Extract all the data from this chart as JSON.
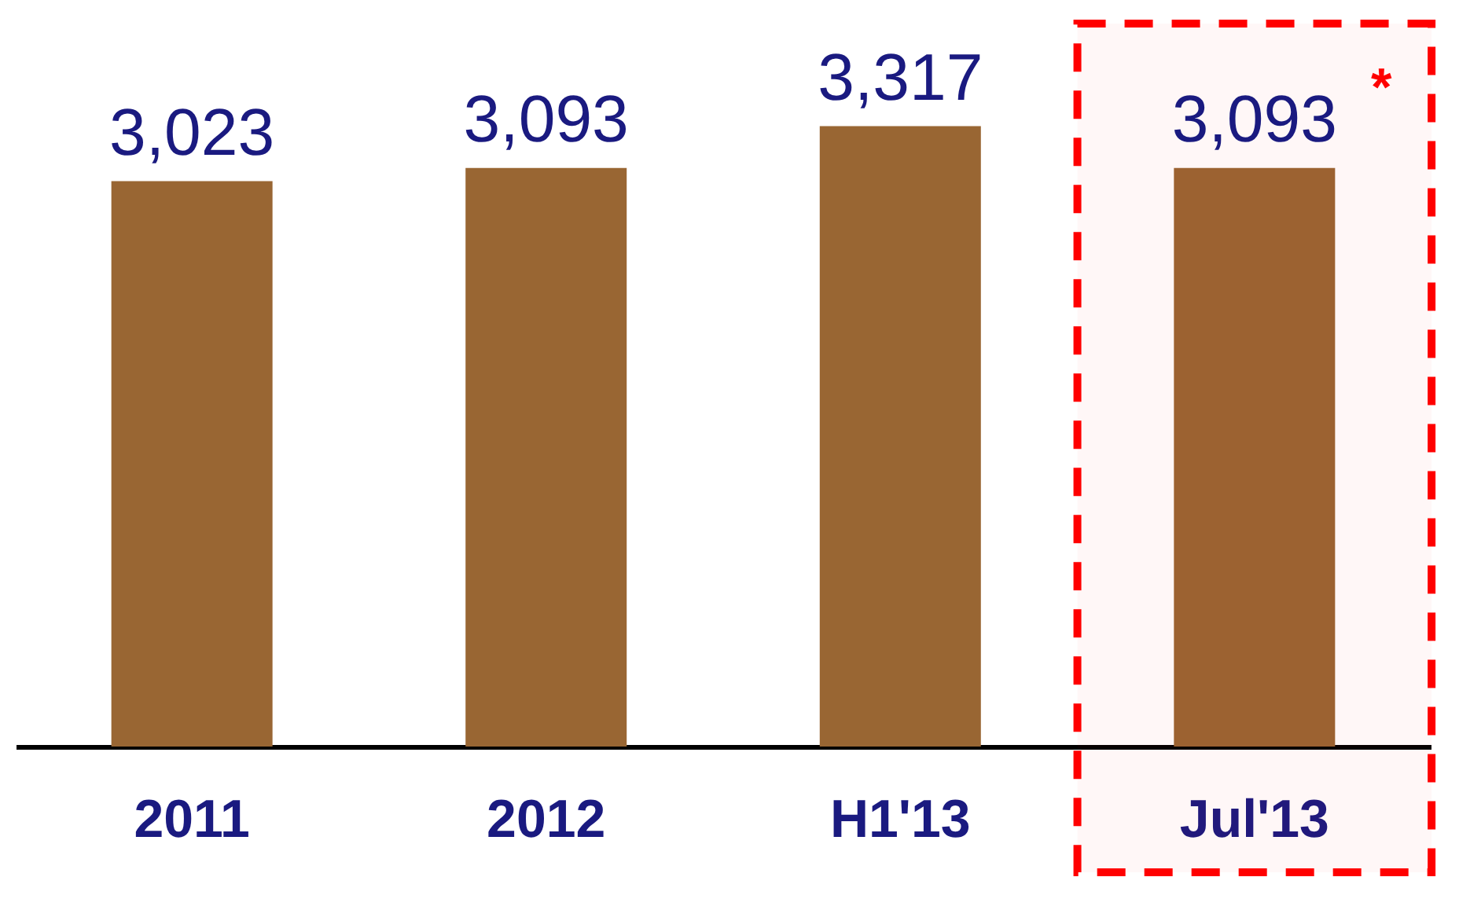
{
  "chart_data": {
    "type": "bar",
    "categories": [
      "2011",
      "2012",
      "H1'13",
      "Jul'13"
    ],
    "values": [
      3023,
      3093,
      3317,
      3093
    ],
    "color": "#996633",
    "data_labels": true,
    "value_labels": [
      "3,023",
      "3,093",
      "3,317",
      "3,093"
    ],
    "bands": [
      {
        "axis": "x",
        "from": "Jul'13",
        "to": "Jul'13",
        "color": "#ff0000"
      }
    ],
    "annotations": [
      "*"
    ]
  }
}
